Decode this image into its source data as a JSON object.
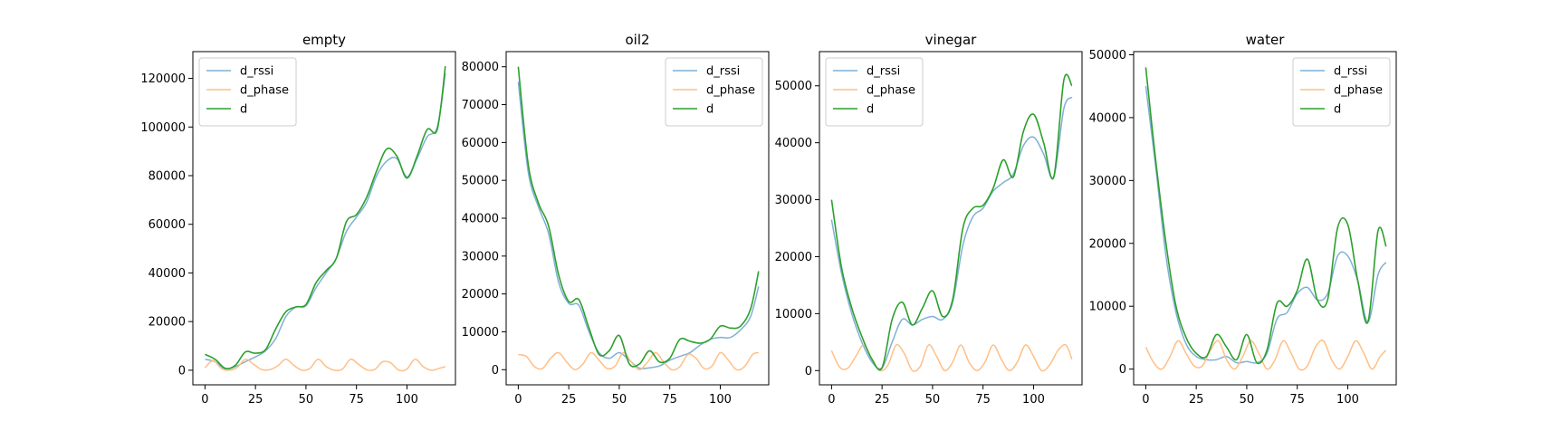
{
  "chart_data": [
    {
      "type": "line",
      "title": "empty",
      "xlim": [
        -6,
        124
      ],
      "ylim": [
        -6000,
        131000
      ],
      "xticks": [
        0,
        25,
        50,
        75,
        100
      ],
      "yticks": [
        0,
        20000,
        40000,
        60000,
        80000,
        100000,
        120000
      ],
      "legend": "top-left",
      "series": [
        {
          "name": "d_rssi",
          "color": "#7fb0d6",
          "x": [
            0,
            5,
            10,
            15,
            20,
            25,
            30,
            35,
            40,
            45,
            50,
            55,
            60,
            65,
            70,
            75,
            80,
            85,
            90,
            95,
            100,
            105,
            110,
            115,
            119
          ],
          "y": [
            4500,
            3500,
            500,
            1500,
            3500,
            5500,
            8000,
            13000,
            22000,
            26000,
            26500,
            34000,
            40000,
            46000,
            57000,
            63000,
            69000,
            80000,
            86000,
            87000,
            79500,
            87000,
            96000,
            100000,
            122000
          ]
        },
        {
          "name": "d_phase",
          "color": "#ffbf86",
          "x": [
            0,
            4,
            8,
            12,
            16,
            20,
            24,
            28,
            32,
            36,
            40,
            44,
            48,
            52,
            56,
            60,
            64,
            68,
            72,
            76,
            80,
            84,
            88,
            92,
            96,
            100,
            104,
            108,
            112,
            116,
            119
          ],
          "y": [
            1000,
            4000,
            800,
            0,
            1200,
            4500,
            2500,
            300,
            200,
            1800,
            4500,
            2000,
            0,
            800,
            4500,
            1500,
            0,
            400,
            4500,
            2500,
            200,
            300,
            3500,
            3000,
            0,
            500,
            4500,
            1500,
            0,
            800,
            1500
          ]
        },
        {
          "name": "d",
          "color": "#2ca02c",
          "x": [
            0,
            5,
            10,
            15,
            20,
            25,
            30,
            35,
            40,
            45,
            50,
            55,
            60,
            65,
            70,
            75,
            80,
            85,
            90,
            95,
            100,
            105,
            110,
            115,
            119
          ],
          "y": [
            6500,
            4500,
            800,
            2000,
            7500,
            7000,
            8500,
            17000,
            24000,
            26000,
            27000,
            36000,
            41000,
            46000,
            61000,
            64000,
            71000,
            82000,
            91000,
            88000,
            79000,
            88000,
            99000,
            99000,
            125000
          ]
        }
      ]
    },
    {
      "type": "line",
      "title": "oil2",
      "xlim": [
        -6,
        124
      ],
      "ylim": [
        -4000,
        84000
      ],
      "xticks": [
        0,
        25,
        50,
        75,
        100
      ],
      "yticks": [
        0,
        10000,
        20000,
        30000,
        40000,
        50000,
        60000,
        70000,
        80000
      ],
      "legend": "top-right",
      "series": [
        {
          "name": "d_rssi",
          "color": "#7fb0d6",
          "x": [
            0,
            5,
            10,
            15,
            20,
            25,
            30,
            35,
            40,
            45,
            50,
            55,
            60,
            65,
            70,
            75,
            80,
            85,
            90,
            95,
            100,
            105,
            110,
            115,
            119
          ],
          "y": [
            76000,
            52000,
            43000,
            36000,
            23000,
            17500,
            17000,
            10000,
            4500,
            3000,
            4500,
            2500,
            400,
            500,
            1000,
            2500,
            3500,
            4500,
            6500,
            8000,
            8500,
            8500,
            10500,
            14000,
            22000
          ]
        },
        {
          "name": "d_phase",
          "color": "#ffbf86",
          "x": [
            0,
            4,
            8,
            12,
            16,
            20,
            24,
            28,
            32,
            36,
            40,
            44,
            48,
            52,
            56,
            60,
            64,
            68,
            72,
            76,
            80,
            84,
            88,
            92,
            96,
            100,
            104,
            108,
            112,
            116,
            119
          ],
          "y": [
            4000,
            3500,
            800,
            300,
            3000,
            4500,
            2000,
            0,
            1500,
            4500,
            2500,
            300,
            1000,
            4500,
            2000,
            0,
            2000,
            4500,
            2000,
            0,
            800,
            4000,
            3000,
            300,
            1000,
            4500,
            2500,
            0,
            800,
            4000,
            4500
          ]
        },
        {
          "name": "d",
          "color": "#2ca02c",
          "x": [
            0,
            5,
            10,
            15,
            20,
            25,
            30,
            35,
            40,
            45,
            50,
            55,
            60,
            65,
            70,
            75,
            80,
            85,
            90,
            95,
            100,
            105,
            110,
            115,
            119
          ],
          "y": [
            80000,
            54000,
            44000,
            38000,
            25000,
            18000,
            18500,
            11000,
            4000,
            5000,
            9000,
            1500,
            1500,
            5000,
            2000,
            3000,
            8000,
            7500,
            7000,
            8000,
            11500,
            11000,
            11500,
            16000,
            26000
          ]
        }
      ]
    },
    {
      "type": "line",
      "title": "vinegar",
      "xlim": [
        -6,
        124
      ],
      "ylim": [
        -2500,
        56000
      ],
      "xticks": [
        0,
        25,
        50,
        75,
        100
      ],
      "yticks": [
        0,
        10000,
        20000,
        30000,
        40000,
        50000
      ],
      "legend": "top-left",
      "series": [
        {
          "name": "d_rssi",
          "color": "#7fb0d6",
          "x": [
            0,
            5,
            10,
            15,
            20,
            25,
            30,
            35,
            40,
            45,
            50,
            55,
            60,
            65,
            70,
            75,
            80,
            85,
            90,
            95,
            100,
            105,
            110,
            115,
            119
          ],
          "y": [
            26500,
            17000,
            10000,
            5000,
            1500,
            500,
            5000,
            9000,
            8000,
            9000,
            9500,
            9000,
            12000,
            22000,
            27000,
            28500,
            31500,
            33000,
            34500,
            39500,
            41000,
            38000,
            34000,
            46000,
            48000
          ]
        },
        {
          "name": "d_phase",
          "color": "#ffbf86",
          "x": [
            0,
            4,
            8,
            12,
            16,
            20,
            24,
            28,
            32,
            36,
            40,
            44,
            48,
            52,
            56,
            60,
            64,
            68,
            72,
            76,
            80,
            84,
            88,
            92,
            96,
            100,
            104,
            108,
            112,
            116,
            119
          ],
          "y": [
            3500,
            600,
            400,
            2500,
            4500,
            2000,
            0,
            1000,
            4500,
            3000,
            0,
            800,
            4500,
            2500,
            0,
            1500,
            4500,
            1500,
            0,
            1500,
            4500,
            2000,
            0,
            1500,
            4500,
            2500,
            0,
            1000,
            3500,
            4500,
            2000
          ]
        },
        {
          "name": "d",
          "color": "#2ca02c",
          "x": [
            0,
            5,
            10,
            15,
            20,
            25,
            30,
            35,
            40,
            45,
            50,
            55,
            60,
            65,
            70,
            75,
            80,
            85,
            90,
            95,
            100,
            105,
            110,
            115,
            119
          ],
          "y": [
            30000,
            18000,
            11000,
            6000,
            2000,
            500,
            9000,
            12000,
            8000,
            11000,
            14000,
            9500,
            12500,
            25000,
            28500,
            29000,
            32000,
            37000,
            34000,
            42000,
            45000,
            40000,
            34000,
            51000,
            50000
          ]
        }
      ]
    },
    {
      "type": "line",
      "title": "water",
      "xlim": [
        -6,
        124
      ],
      "ylim": [
        -2500,
        50500
      ],
      "xticks": [
        0,
        25,
        50,
        75,
        100
      ],
      "yticks": [
        0,
        10000,
        20000,
        30000,
        40000,
        50000
      ],
      "legend": "top-right",
      "series": [
        {
          "name": "d_rssi",
          "color": "#7fb0d6",
          "x": [
            0,
            5,
            10,
            15,
            20,
            25,
            30,
            35,
            40,
            45,
            50,
            55,
            60,
            65,
            70,
            75,
            80,
            85,
            90,
            95,
            100,
            105,
            110,
            115,
            119
          ],
          "y": [
            45000,
            32000,
            18000,
            9000,
            4000,
            2000,
            1500,
            1500,
            2000,
            1000,
            1200,
            1000,
            2500,
            8000,
            9000,
            12000,
            13000,
            11000,
            12000,
            18000,
            18000,
            14000,
            7500,
            15000,
            17000
          ]
        },
        {
          "name": "d_phase",
          "color": "#ffbf86",
          "x": [
            0,
            4,
            8,
            12,
            16,
            20,
            24,
            28,
            32,
            36,
            40,
            44,
            48,
            52,
            56,
            60,
            64,
            68,
            72,
            76,
            80,
            84,
            88,
            92,
            96,
            100,
            104,
            108,
            112,
            116,
            119
          ],
          "y": [
            3500,
            1000,
            0,
            2000,
            4500,
            2500,
            500,
            500,
            3000,
            4500,
            1500,
            0,
            2000,
            4500,
            2500,
            0,
            1500,
            4500,
            2500,
            0,
            500,
            3500,
            4500,
            1500,
            0,
            2000,
            4500,
            2500,
            0,
            2000,
            3000
          ]
        },
        {
          "name": "d",
          "color": "#2ca02c",
          "x": [
            0,
            5,
            10,
            15,
            20,
            25,
            30,
            35,
            40,
            45,
            50,
            55,
            60,
            65,
            70,
            75,
            80,
            85,
            90,
            95,
            100,
            105,
            110,
            115,
            119
          ],
          "y": [
            48000,
            33000,
            20000,
            10000,
            5000,
            2500,
            2000,
            5500,
            3500,
            1500,
            5500,
            1000,
            3000,
            10500,
            10000,
            12500,
            17500,
            11000,
            11000,
            22500,
            23000,
            14000,
            7500,
            22000,
            19500
          ]
        }
      ]
    }
  ]
}
